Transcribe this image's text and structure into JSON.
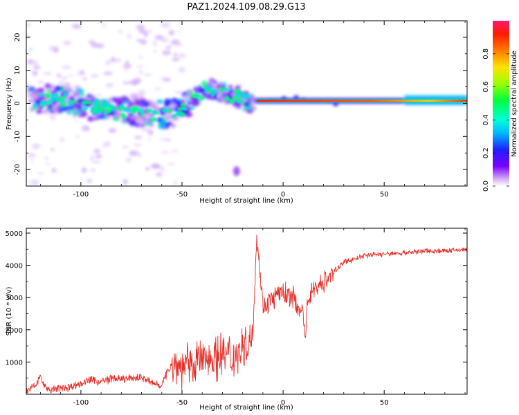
{
  "title": "PAZ1.2024.109.08.29.G13",
  "chart_data": [
    {
      "type": "heatmap",
      "title": "PAZ1.2024.109.08.29.G13",
      "xlabel": "Height of straight line (km)",
      "ylabel": "Frequency (Hz)",
      "xlim": [
        -127,
        91
      ],
      "ylim": [
        -25,
        25
      ],
      "xticks": [
        -100,
        -50,
        0,
        50
      ],
      "yticks": [
        20,
        10,
        0,
        -10,
        -20
      ],
      "colorbar": {
        "label": "Normalized spectral amplitude",
        "range": [
          0.0,
          1.0
        ],
        "ticks": [
          0.0,
          0.2,
          0.4,
          0.6,
          0.8
        ],
        "colormap": "rainbow"
      },
      "ridge": {
        "x": [
          -125,
          -115,
          -105,
          -95,
          -85,
          -75,
          -65,
          -55,
          -48,
          -42,
          -35,
          -28,
          -22,
          -17,
          -12,
          0,
          10,
          25,
          40,
          55,
          70,
          80,
          91
        ],
        "y": [
          0.5,
          1.5,
          1,
          -1,
          -2,
          -2.5,
          -3.5,
          -3,
          -1,
          3,
          4,
          3,
          2,
          0,
          0,
          0.5,
          1,
          0.5,
          0.5,
          0.5,
          1,
          1.5,
          1.5
        ]
      }
    },
    {
      "type": "line",
      "xlabel": "Height of straight line (km)",
      "ylabel": "SNR (10 * v/v)",
      "xlim": [
        -127,
        91
      ],
      "ylim": [
        0,
        5150
      ],
      "xticks": [
        -100,
        -50,
        0,
        50
      ],
      "yticks": [
        1000,
        2000,
        3000,
        4000,
        5000
      ],
      "color": "#e8302a",
      "x": [
        -127,
        -122,
        -120,
        -118,
        -115,
        -110,
        -105,
        -100,
        -95,
        -90,
        -85,
        -80,
        -75,
        -70,
        -65,
        -60,
        -55,
        -50,
        -45,
        -40,
        -35,
        -30,
        -25,
        -20,
        -15,
        -13,
        -10,
        -5,
        0,
        5,
        10,
        11,
        12,
        15,
        20,
        25,
        30,
        35,
        40,
        45,
        50,
        60,
        70,
        80,
        91
      ],
      "y": [
        100,
        300,
        600,
        250,
        150,
        200,
        250,
        350,
        450,
        400,
        500,
        480,
        500,
        550,
        350,
        300,
        1000,
        900,
        1000,
        1100,
        1200,
        1300,
        1200,
        1500,
        1900,
        5000,
        2800,
        3000,
        3200,
        3000,
        2500,
        1500,
        3000,
        3300,
        3500,
        3800,
        4100,
        4200,
        4300,
        4350,
        4350,
        4400,
        4450,
        4450,
        4500
      ]
    }
  ]
}
